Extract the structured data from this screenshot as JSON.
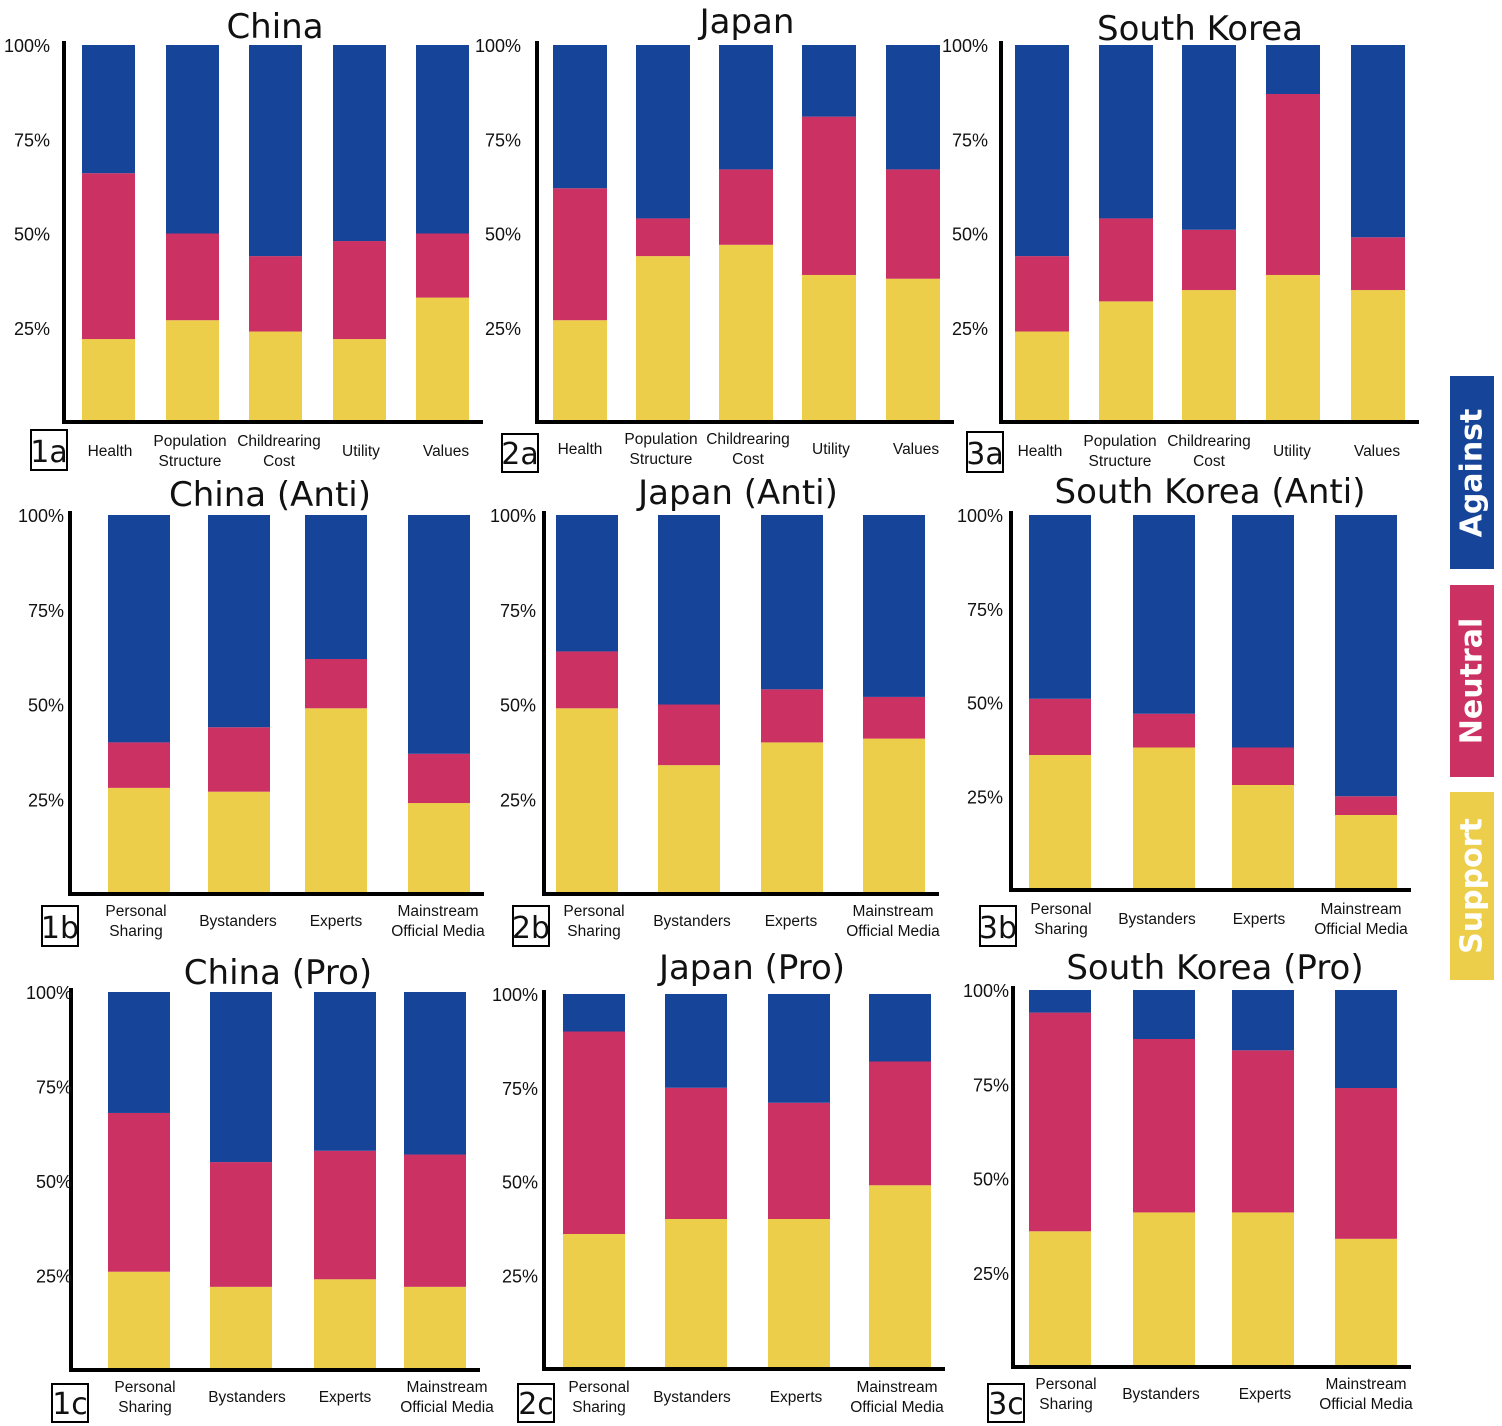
{
  "colors": {
    "support": "#ECCE4A",
    "neutral": "#CC3163",
    "against": "#154498"
  },
  "legend": [
    {
      "key": "against",
      "label": "Against"
    },
    {
      "key": "neutral",
      "label": "Neutral"
    },
    {
      "key": "support",
      "label": "Support"
    }
  ],
  "chart_data": [
    {
      "id": "1a",
      "type": "bar",
      "stacked": true,
      "title": "China",
      "panel_label": "1a",
      "yticks": [
        "25%",
        "50%",
        "75%",
        "100%"
      ],
      "ylim": [
        0,
        100
      ],
      "categories": [
        "Health",
        "Population\nStructure",
        "Childrearing\nCost",
        "Utility",
        "Values"
      ],
      "series": [
        {
          "name": "Support",
          "values": [
            22,
            27,
            24,
            22,
            33
          ]
        },
        {
          "name": "Neutral",
          "values": [
            44,
            23,
            20,
            26,
            17
          ]
        },
        {
          "name": "Against",
          "values": [
            34,
            50,
            56,
            52,
            50
          ]
        }
      ]
    },
    {
      "id": "2a",
      "type": "bar",
      "stacked": true,
      "title": "Japan",
      "panel_label": "2a",
      "yticks": [
        "25%",
        "50%",
        "75%",
        "100%"
      ],
      "ylim": [
        0,
        100
      ],
      "categories": [
        "Health",
        "Population\nStructure",
        "Childrearing\nCost",
        "Utility",
        "Values"
      ],
      "series": [
        {
          "name": "Support",
          "values": [
            27,
            44,
            47,
            39,
            38
          ]
        },
        {
          "name": "Neutral",
          "values": [
            35,
            10,
            20,
            42,
            29
          ]
        },
        {
          "name": "Against",
          "values": [
            38,
            46,
            33,
            19,
            33
          ]
        }
      ]
    },
    {
      "id": "3a",
      "type": "bar",
      "stacked": true,
      "title": "South Korea",
      "panel_label": "3a",
      "yticks": [
        "25%",
        "50%",
        "75%",
        "100%"
      ],
      "ylim": [
        0,
        100
      ],
      "categories": [
        "Health",
        "Population\nStructure",
        "Childrearing\nCost",
        "Utility",
        "Values"
      ],
      "series": [
        {
          "name": "Support",
          "values": [
            24,
            32,
            35,
            39,
            35
          ]
        },
        {
          "name": "Neutral",
          "values": [
            20,
            22,
            16,
            48,
            14
          ]
        },
        {
          "name": "Against",
          "values": [
            56,
            46,
            49,
            13,
            51
          ]
        }
      ]
    },
    {
      "id": "1b",
      "type": "bar",
      "stacked": true,
      "title": "China (Anti)",
      "panel_label": "1b",
      "yticks": [
        "25%",
        "50%",
        "75%",
        "100%"
      ],
      "ylim": [
        0,
        100
      ],
      "categories": [
        "Personal\nSharing",
        "Bystanders",
        "Experts",
        "Mainstream\nOfficial Media"
      ],
      "series": [
        {
          "name": "Support",
          "values": [
            28,
            27,
            49,
            24
          ]
        },
        {
          "name": "Neutral",
          "values": [
            12,
            17,
            13,
            13
          ]
        },
        {
          "name": "Against",
          "values": [
            60,
            56,
            38,
            63
          ]
        }
      ]
    },
    {
      "id": "2b",
      "type": "bar",
      "stacked": true,
      "title": "Japan (Anti)",
      "panel_label": "2b",
      "yticks": [
        "25%",
        "50%",
        "75%",
        "100%"
      ],
      "ylim": [
        0,
        100
      ],
      "categories": [
        "Personal\nSharing",
        "Bystanders",
        "Experts",
        "Mainstream\nOfficial Media"
      ],
      "series": [
        {
          "name": "Support",
          "values": [
            49,
            34,
            40,
            41
          ]
        },
        {
          "name": "Neutral",
          "values": [
            15,
            16,
            14,
            11
          ]
        },
        {
          "name": "Against",
          "values": [
            36,
            50,
            46,
            48
          ]
        }
      ]
    },
    {
      "id": "3b",
      "type": "bar",
      "stacked": true,
      "title": "South Korea (Anti)",
      "panel_label": "3b",
      "yticks": [
        "25%",
        "50%",
        "75%",
        "100%"
      ],
      "ylim": [
        0,
        100
      ],
      "categories": [
        "Personal\nSharing",
        "Bystanders",
        "Experts",
        "Mainstream\nOfficial Media"
      ],
      "series": [
        {
          "name": "Support",
          "values": [
            36,
            38,
            28,
            20
          ]
        },
        {
          "name": "Neutral",
          "values": [
            15,
            9,
            10,
            5
          ]
        },
        {
          "name": "Against",
          "values": [
            49,
            53,
            62,
            75
          ]
        }
      ]
    },
    {
      "id": "1c",
      "type": "bar",
      "stacked": true,
      "title": "China (Pro)",
      "panel_label": "1c",
      "yticks": [
        "25%",
        "50%",
        "75%",
        "100%"
      ],
      "ylim": [
        0,
        100
      ],
      "categories": [
        "Personal\nSharing",
        "Bystanders",
        "Experts",
        "Mainstream\nOfficial Media"
      ],
      "series": [
        {
          "name": "Support",
          "values": [
            26,
            22,
            24,
            22
          ]
        },
        {
          "name": "Neutral",
          "values": [
            42,
            33,
            34,
            35
          ]
        },
        {
          "name": "Against",
          "values": [
            32,
            45,
            42,
            43
          ]
        }
      ]
    },
    {
      "id": "2c",
      "type": "bar",
      "stacked": true,
      "title": "Japan (Pro)",
      "panel_label": "2c",
      "yticks": [
        "25%",
        "50%",
        "75%",
        "100%"
      ],
      "ylim": [
        0,
        100
      ],
      "categories": [
        "Personal\nSharing",
        "Bystanders",
        "Experts",
        "Mainstream\nOfficial Media"
      ],
      "series": [
        {
          "name": "Support",
          "values": [
            36,
            40,
            40,
            49
          ]
        },
        {
          "name": "Neutral",
          "values": [
            54,
            35,
            31,
            33
          ]
        },
        {
          "name": "Against",
          "values": [
            10,
            25,
            29,
            18
          ]
        }
      ]
    },
    {
      "id": "3c",
      "type": "bar",
      "stacked": true,
      "title": "South Korea (Pro)",
      "panel_label": "3c",
      "yticks": [
        "25%",
        "50%",
        "75%",
        "100%"
      ],
      "ylim": [
        0,
        100
      ],
      "categories": [
        "Personal\nSharing",
        "Bystanders",
        "Experts",
        "Mainstream\nOfficial Media"
      ],
      "series": [
        {
          "name": "Support",
          "values": [
            36,
            41,
            41,
            34
          ]
        },
        {
          "name": "Neutral",
          "values": [
            58,
            46,
            43,
            40
          ]
        },
        {
          "name": "Against",
          "values": [
            6,
            13,
            16,
            26
          ]
        }
      ]
    }
  ]
}
